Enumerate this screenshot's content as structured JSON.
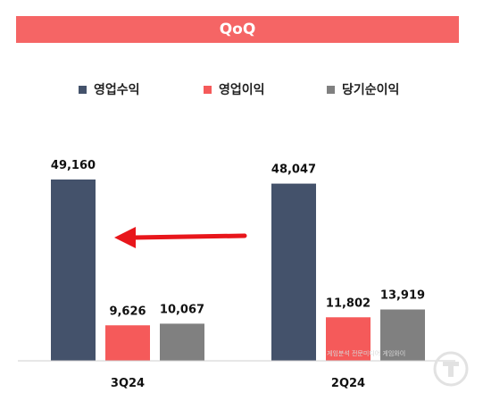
{
  "header": {
    "title": "QoQ"
  },
  "legend": [
    {
      "label": "영업수익",
      "color": "#44526b"
    },
    {
      "label": "영업이익",
      "color": "#f55a5a"
    },
    {
      "label": "당기순이익",
      "color": "#808080"
    }
  ],
  "watermark": "게임분석 전문미디어 게임와이",
  "chart_data": {
    "type": "bar",
    "categories": [
      "3Q24",
      "2Q24"
    ],
    "series": [
      {
        "name": "영업수익",
        "values": [
          49160,
          48047
        ],
        "labels": [
          "49,160",
          "48,047"
        ],
        "color": "#44526b"
      },
      {
        "name": "영업이익",
        "values": [
          9626,
          11802
        ],
        "labels": [
          "9,626",
          "11,802"
        ],
        "color": "#f55a5a"
      },
      {
        "name": "당기순이익",
        "values": [
          10067,
          13919
        ],
        "labels": [
          "10,067",
          "13,919"
        ],
        "color": "#808080"
      }
    ],
    "ylim": [
      0,
      49160
    ],
    "grid": false,
    "legend_position": "top",
    "annotation": "arrow pointing from 2Q24 toward 3Q24"
  }
}
